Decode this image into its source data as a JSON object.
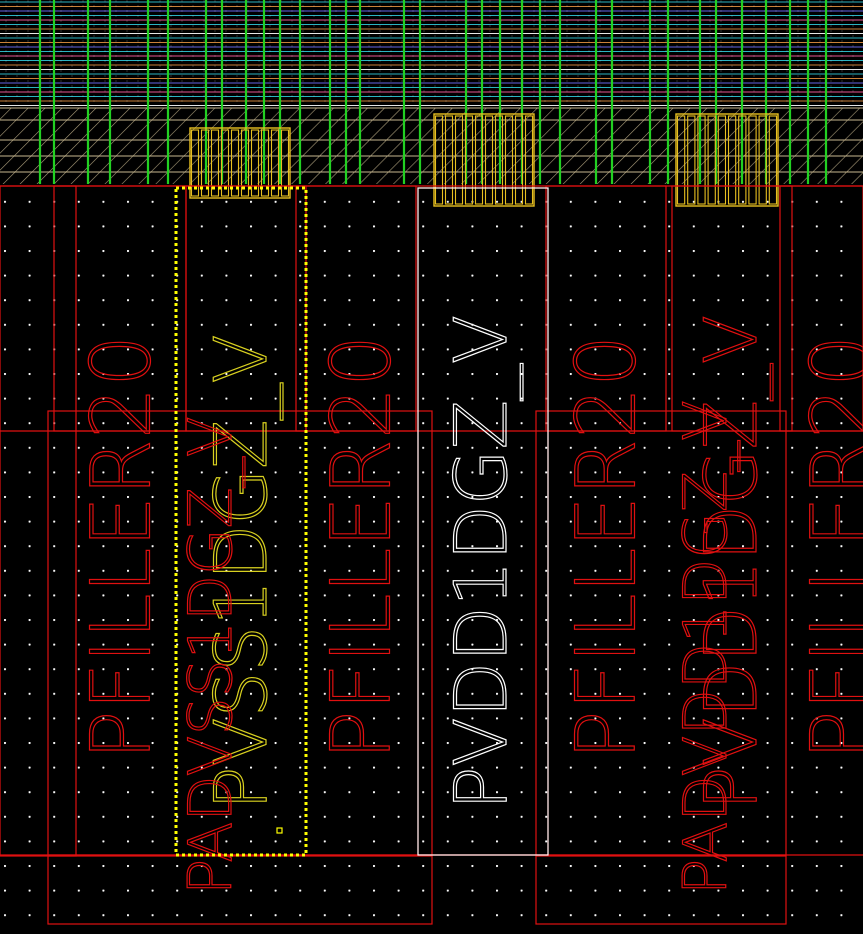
{
  "cells": [
    {
      "name": "PFILLER20",
      "kind": "filler",
      "color": "#e01010"
    },
    {
      "name": "PVSS1DGZ_V",
      "kind": "pad",
      "color": "#d8d020",
      "selected": true
    },
    {
      "name": "PFILLER20",
      "kind": "filler",
      "color": "#e01010"
    },
    {
      "name": "PVDD1DGZ_V",
      "kind": "pad",
      "color": "#ffffff"
    },
    {
      "name": "PFILLER20",
      "kind": "filler",
      "color": "#e01010"
    },
    {
      "name": "PVDD1DGZ_V",
      "kind": "pad",
      "color": "#e01010"
    },
    {
      "name": "PFILLER20",
      "kind": "filler",
      "color": "#e01010"
    }
  ],
  "ghost_labels": [
    {
      "name": "PADVSS1DGZ_V",
      "color": "#e01010"
    },
    {
      "name": "PADVDD1DGZ_V",
      "color": "#e01010"
    }
  ],
  "colors": {
    "background": "#000000",
    "grid_dot": "#ffffff",
    "boundary": "#e01010",
    "metal_green": "#22d022",
    "metal_cyan": "#30c8d8",
    "hatch": "#c8b890",
    "via_yellow": "#e8c020",
    "selection": "#ffff00"
  },
  "layers": [
    "metal-bus",
    "power-straps",
    "via-array",
    "cell-boundary",
    "grid"
  ]
}
